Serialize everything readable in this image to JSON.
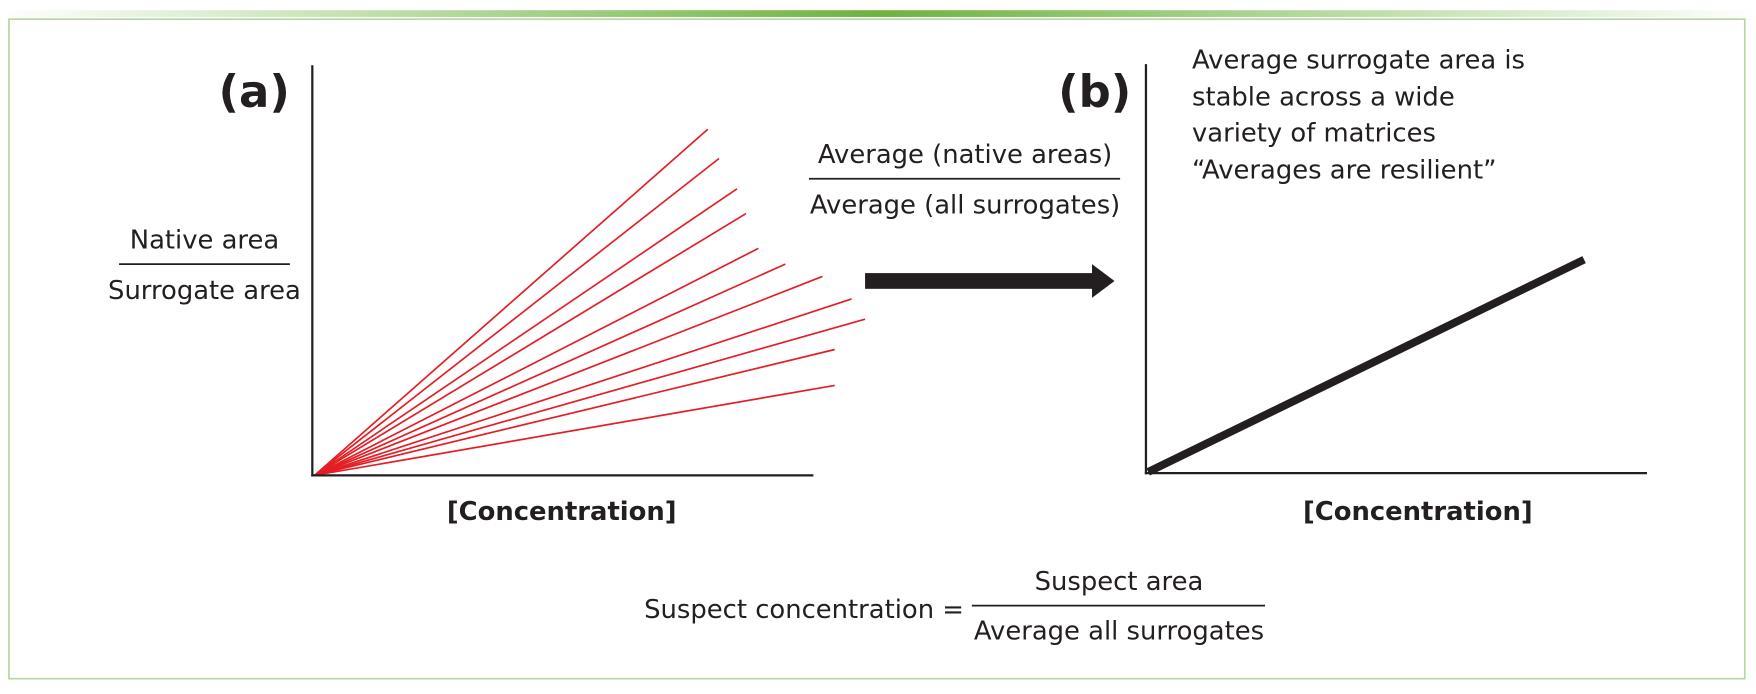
{
  "panel_a": {
    "label": "(a)",
    "y_label_numerator": "Native area",
    "y_label_denominator": "Surrogate area",
    "x_label": "[Concentration]"
  },
  "transform": {
    "numerator": "Average (native areas)",
    "denominator": "Average (all surrogates)"
  },
  "panel_b": {
    "label": "(b)",
    "note_lines": [
      "Average surrogate area is",
      "stable across a wide",
      "variety of matrices",
      "“Averages are resilient”"
    ],
    "x_label": "[Concentration]"
  },
  "formula": {
    "lhs": "Suspect concentration =",
    "numerator": "Suspect area",
    "denominator": "Average all surrogates"
  }
}
